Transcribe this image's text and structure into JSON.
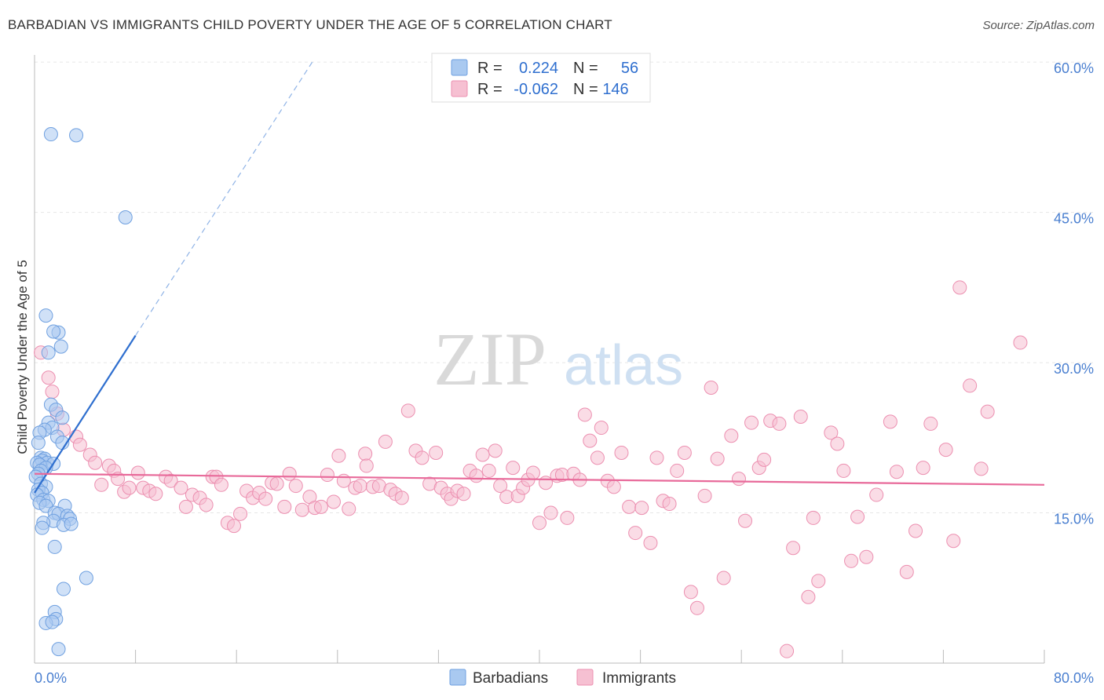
{
  "title": "BARBADIAN VS IMMIGRANTS CHILD POVERTY UNDER THE AGE OF 5 CORRELATION CHART",
  "source": "Source: ZipAtlas.com",
  "watermark": {
    "zip": "ZIP",
    "atlas": "atlas"
  },
  "colors": {
    "blue_fill": "#a9c9f0",
    "blue_stroke": "#6fa0e0",
    "blue_line": "#2f6fcf",
    "pink_fill": "#f6c0d2",
    "pink_stroke": "#ec8fb0",
    "pink_line": "#e86a9a",
    "tick": "#4a7fd0",
    "grid": "#e6e6e6"
  },
  "legend": {
    "r_label": "R =",
    "n_label": "N =",
    "rows": [
      {
        "series": "Barbadians",
        "r": "0.224",
        "n": "56"
      },
      {
        "series": "Immigrants",
        "r": "-0.062",
        "n": "146"
      }
    ]
  },
  "chart_data": {
    "type": "scatter",
    "title": "BARBADIAN VS IMMIGRANTS CHILD POVERTY UNDER THE AGE OF 5 CORRELATION CHART",
    "xlabel": "",
    "ylabel": "Child Poverty Under the Age of 5",
    "xlim": [
      0,
      80
    ],
    "ylim": [
      0,
      61.5
    ],
    "x_tick_labels": {
      "min": "0.0%",
      "max": "80.0%"
    },
    "y_ticks": [
      15,
      30,
      45,
      60
    ],
    "y_tick_labels": [
      "15.0%",
      "30.0%",
      "45.0%",
      "60.0%"
    ],
    "series": [
      {
        "name": "Barbadians",
        "r": 0.224,
        "n": 56,
        "trend": {
          "x0": 0,
          "y0": 17.0,
          "x1": 8,
          "y1": 32.7,
          "x_dash_end": 22,
          "y_dash_end": 60.0
        },
        "points": [
          [
            1.3,
            52.8
          ],
          [
            3.3,
            52.7
          ],
          [
            7.2,
            44.5
          ],
          [
            0.9,
            34.7
          ],
          [
            1.9,
            33.0
          ],
          [
            1.5,
            33.1
          ],
          [
            2.1,
            31.6
          ],
          [
            1.1,
            31.0
          ],
          [
            1.3,
            25.8
          ],
          [
            1.7,
            25.3
          ],
          [
            2.2,
            24.5
          ],
          [
            1.1,
            24.0
          ],
          [
            1.4,
            23.5
          ],
          [
            0.8,
            23.3
          ],
          [
            0.4,
            23.0
          ],
          [
            1.8,
            22.6
          ],
          [
            0.3,
            22.0
          ],
          [
            2.2,
            22.0
          ],
          [
            0.5,
            20.5
          ],
          [
            0.8,
            20.4
          ],
          [
            0.6,
            20.2
          ],
          [
            1.0,
            20.0
          ],
          [
            0.2,
            20.0
          ],
          [
            0.4,
            19.8
          ],
          [
            1.5,
            19.9
          ],
          [
            0.9,
            19.5
          ],
          [
            0.5,
            19.2
          ],
          [
            0.3,
            18.9
          ],
          [
            0.1,
            18.6
          ],
          [
            0.5,
            17.9
          ],
          [
            0.9,
            17.6
          ],
          [
            0.3,
            17.3
          ],
          [
            0.6,
            17.0
          ],
          [
            0.2,
            16.8
          ],
          [
            0.7,
            16.3
          ],
          [
            1.1,
            16.2
          ],
          [
            0.4,
            16.0
          ],
          [
            0.9,
            15.7
          ],
          [
            2.4,
            15.7
          ],
          [
            1.6,
            15.0
          ],
          [
            1.9,
            14.9
          ],
          [
            2.6,
            14.7
          ],
          [
            2.8,
            14.4
          ],
          [
            1.5,
            14.2
          ],
          [
            0.7,
            14.0
          ],
          [
            2.3,
            13.8
          ],
          [
            2.9,
            13.9
          ],
          [
            0.6,
            13.5
          ],
          [
            1.6,
            11.6
          ],
          [
            4.1,
            8.5
          ],
          [
            2.3,
            7.4
          ],
          [
            1.6,
            5.1
          ],
          [
            1.7,
            4.4
          ],
          [
            0.9,
            4.0
          ],
          [
            1.4,
            4.1
          ],
          [
            1.9,
            1.4
          ]
        ]
      },
      {
        "name": "Immigrants",
        "r": -0.062,
        "n": 146,
        "trend": {
          "x0": 0,
          "y0": 18.9,
          "x1": 80,
          "y1": 17.8
        },
        "points": [
          [
            0.5,
            31.0
          ],
          [
            1.1,
            28.5
          ],
          [
            1.4,
            27.1
          ],
          [
            1.8,
            24.9
          ],
          [
            2.3,
            23.3
          ],
          [
            3.3,
            22.6
          ],
          [
            3.6,
            21.8
          ],
          [
            4.4,
            20.8
          ],
          [
            4.8,
            20.0
          ],
          [
            5.3,
            17.8
          ],
          [
            5.9,
            19.7
          ],
          [
            6.3,
            19.2
          ],
          [
            6.6,
            18.4
          ],
          [
            7.1,
            17.1
          ],
          [
            7.5,
            17.5
          ],
          [
            8.2,
            19.0
          ],
          [
            8.6,
            17.5
          ],
          [
            9.1,
            17.2
          ],
          [
            9.6,
            16.9
          ],
          [
            10.4,
            18.6
          ],
          [
            10.8,
            18.2
          ],
          [
            11.6,
            17.5
          ],
          [
            12.0,
            15.6
          ],
          [
            12.5,
            16.8
          ],
          [
            13.1,
            16.5
          ],
          [
            13.6,
            15.8
          ],
          [
            14.1,
            18.6
          ],
          [
            14.4,
            18.6
          ],
          [
            14.8,
            17.8
          ],
          [
            15.3,
            14.0
          ],
          [
            15.8,
            13.7
          ],
          [
            16.3,
            14.9
          ],
          [
            16.8,
            17.2
          ],
          [
            17.3,
            16.5
          ],
          [
            17.8,
            17.0
          ],
          [
            18.3,
            16.4
          ],
          [
            18.8,
            18.0
          ],
          [
            19.2,
            17.9
          ],
          [
            19.8,
            15.6
          ],
          [
            20.2,
            18.9
          ],
          [
            20.7,
            17.7
          ],
          [
            21.2,
            15.3
          ],
          [
            21.8,
            16.6
          ],
          [
            22.2,
            15.5
          ],
          [
            22.7,
            15.6
          ],
          [
            23.2,
            18.8
          ],
          [
            23.7,
            16.1
          ],
          [
            24.1,
            20.7
          ],
          [
            24.5,
            18.2
          ],
          [
            24.9,
            15.4
          ],
          [
            25.4,
            17.5
          ],
          [
            25.8,
            17.7
          ],
          [
            26.2,
            20.9
          ],
          [
            26.8,
            17.6
          ],
          [
            27.3,
            17.7
          ],
          [
            27.8,
            22.1
          ],
          [
            28.2,
            17.3
          ],
          [
            28.6,
            16.9
          ],
          [
            29.1,
            16.5
          ],
          [
            29.6,
            25.2
          ],
          [
            30.2,
            21.2
          ],
          [
            30.7,
            20.5
          ],
          [
            31.3,
            17.9
          ],
          [
            31.8,
            21.0
          ],
          [
            32.2,
            17.5
          ],
          [
            32.7,
            16.9
          ],
          [
            33.0,
            16.4
          ],
          [
            33.5,
            17.2
          ],
          [
            34.0,
            16.9
          ],
          [
            34.5,
            19.2
          ],
          [
            35.0,
            18.7
          ],
          [
            35.5,
            20.8
          ],
          [
            36.0,
            19.2
          ],
          [
            36.5,
            21.2
          ],
          [
            36.9,
            17.7
          ],
          [
            37.4,
            16.6
          ],
          [
            37.9,
            19.5
          ],
          [
            38.3,
            16.7
          ],
          [
            38.7,
            17.5
          ],
          [
            39.1,
            18.3
          ],
          [
            39.5,
            19.0
          ],
          [
            40.0,
            14.0
          ],
          [
            40.5,
            18.0
          ],
          [
            40.9,
            15.0
          ],
          [
            41.4,
            18.7
          ],
          [
            41.8,
            18.8
          ],
          [
            42.2,
            14.5
          ],
          [
            42.7,
            18.9
          ],
          [
            43.2,
            18.3
          ],
          [
            43.6,
            24.8
          ],
          [
            44.0,
            22.2
          ],
          [
            44.6,
            20.5
          ],
          [
            44.9,
            23.5
          ],
          [
            45.4,
            18.2
          ],
          [
            45.9,
            17.6
          ],
          [
            46.5,
            21.0
          ],
          [
            47.1,
            15.6
          ],
          [
            47.6,
            13.0
          ],
          [
            48.1,
            15.5
          ],
          [
            48.8,
            12.0
          ],
          [
            49.3,
            20.5
          ],
          [
            49.8,
            16.2
          ],
          [
            50.3,
            15.9
          ],
          [
            50.9,
            19.2
          ],
          [
            51.5,
            21.0
          ],
          [
            52.0,
            7.1
          ],
          [
            52.5,
            5.5
          ],
          [
            53.1,
            16.7
          ],
          [
            53.6,
            27.5
          ],
          [
            54.1,
            20.4
          ],
          [
            54.6,
            8.5
          ],
          [
            55.2,
            22.7
          ],
          [
            55.8,
            18.4
          ],
          [
            56.3,
            14.2
          ],
          [
            56.8,
            24.0
          ],
          [
            57.4,
            19.5
          ],
          [
            57.8,
            20.3
          ],
          [
            58.3,
            24.2
          ],
          [
            59.0,
            23.9
          ],
          [
            59.6,
            1.2
          ],
          [
            60.1,
            11.5
          ],
          [
            60.7,
            24.6
          ],
          [
            61.3,
            6.6
          ],
          [
            61.7,
            14.5
          ],
          [
            62.1,
            8.2
          ],
          [
            63.1,
            23.0
          ],
          [
            63.6,
            21.9
          ],
          [
            64.1,
            19.2
          ],
          [
            64.7,
            10.2
          ],
          [
            65.2,
            14.6
          ],
          [
            65.9,
            10.6
          ],
          [
            66.7,
            16.8
          ],
          [
            67.8,
            24.1
          ],
          [
            68.3,
            19.1
          ],
          [
            69.1,
            9.1
          ],
          [
            69.8,
            13.2
          ],
          [
            70.4,
            19.5
          ],
          [
            71.0,
            23.9
          ],
          [
            72.2,
            21.3
          ],
          [
            72.8,
            12.2
          ],
          [
            73.3,
            37.5
          ],
          [
            74.1,
            27.7
          ],
          [
            75.0,
            19.4
          ],
          [
            75.5,
            25.1
          ],
          [
            78.1,
            32.0
          ],
          [
            26.3,
            19.7
          ]
        ]
      }
    ]
  },
  "bottom_legend": [
    "Barbadians",
    "Immigrants"
  ]
}
